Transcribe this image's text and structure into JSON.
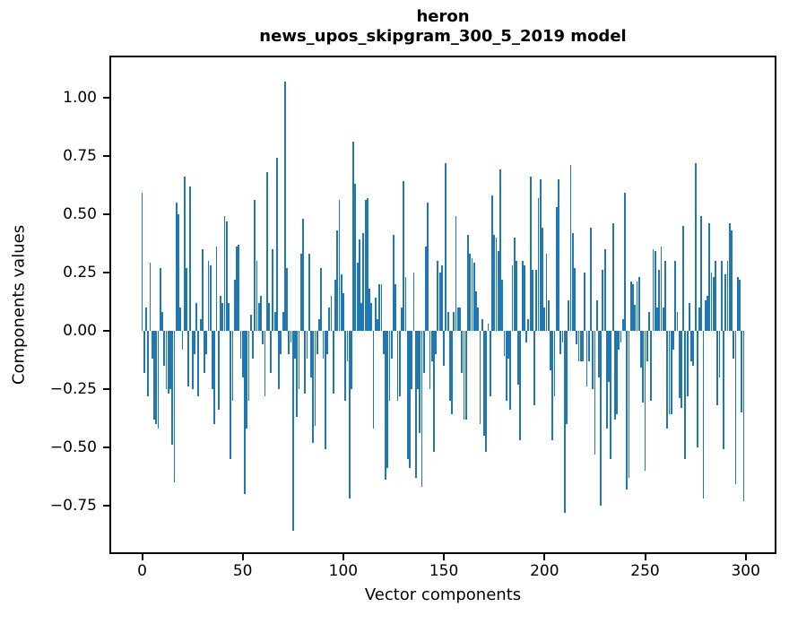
{
  "figure": {
    "title_line1": "heron",
    "title_line2": "news_upos_skipgram_300_5_2019 model"
  },
  "chart_data": {
    "type": "bar",
    "title": "heron\nnews_upos_skipgram_300_5_2019 model",
    "xlabel": "Vector components",
    "ylabel": "Components values",
    "bar_color": "#1f77b4",
    "n_components": 300,
    "xlim": [
      -15.39,
      314.39
    ],
    "ylim": [
      -0.951,
      1.172
    ],
    "grid": false,
    "legend": "none",
    "x_ticks": [
      0,
      50,
      100,
      150,
      200,
      250,
      300
    ],
    "x_tick_labels": [
      "0",
      "50",
      "100",
      "150",
      "200",
      "250",
      "300"
    ],
    "y_ticks": [
      1.0,
      0.75,
      0.5,
      0.25,
      0.0,
      -0.25,
      -0.5,
      -0.75
    ],
    "y_tick_labels": [
      "1.00",
      "0.75",
      "0.50",
      "0.25",
      "0.00",
      "−0.25",
      "−0.50",
      "−0.75"
    ],
    "values": [
      0.59,
      -0.18,
      0.1,
      -0.28,
      0.29,
      -0.12,
      -0.38,
      -0.4,
      -0.42,
      0.27,
      0.08,
      -0.15,
      -0.25,
      -0.27,
      -0.25,
      -0.49,
      -0.65,
      0.55,
      0.5,
      0.1,
      -0.08,
      0.66,
      0.27,
      -0.24,
      0.62,
      -0.25,
      -0.1,
      0.12,
      -0.28,
      0.05,
      0.35,
      -0.18,
      -0.1,
      0.3,
      0.28,
      -0.25,
      -0.4,
      0.36,
      -0.34,
      0.15,
      0.12,
      0.49,
      0.47,
      0.12,
      -0.55,
      -0.3,
      0.22,
      0.36,
      0.37,
      -0.12,
      -0.2,
      -0.7,
      -0.42,
      -0.3,
      0.07,
      -0.12,
      0.56,
      0.3,
      0.12,
      0.15,
      -0.06,
      -0.28,
      0.68,
      0.12,
      -0.18,
      0.35,
      0.08,
      0.74,
      -0.25,
      -0.1,
      0.08,
      1.07,
      0.27,
      -0.1,
      -0.05,
      -0.86,
      -0.12,
      -0.37,
      -0.25,
      0.33,
      0.48,
      -0.27,
      -0.12,
      0.33,
      -0.2,
      -0.48,
      -0.41,
      -0.1,
      0.05,
      0.27,
      -0.12,
      -0.51,
      -0.1,
      0.1,
      0.15,
      -0.27,
      0.22,
      0.43,
      0.56,
      0.24,
      0.16,
      -0.3,
      -0.13,
      -0.72,
      -0.25,
      0.81,
      0.63,
      0.29,
      0.39,
      0.12,
      0.42,
      0.56,
      0.57,
      0.18,
      0.12,
      -0.42,
      0.14,
      0.05,
      0.2,
      0.2,
      -0.1,
      -0.64,
      -0.59,
      -0.3,
      -0.12,
      0.41,
      0.2,
      -0.3,
      -0.28,
      0.1,
      0.64,
      0.23,
      -0.55,
      -0.59,
      -0.25,
      0.25,
      -0.63,
      -0.25,
      -0.44,
      -0.67,
      -0.18,
      0.36,
      0.55,
      -0.25,
      -0.13,
      -0.52,
      -0.1,
      0.3,
      0.25,
      0.28,
      -0.15,
      0.72,
      0.08,
      -0.3,
      -0.36,
      0.08,
      0.49,
      0.1,
      0.1,
      -0.18,
      -0.38,
      -0.38,
      0.41,
      0.33,
      0.31,
      0.29,
      0.17,
      0.1,
      -0.4,
      0.05,
      -0.45,
      -0.52,
      0.03,
      -0.28,
      0.58,
      0.41,
      0.4,
      0.34,
      0.69,
      0.22,
      -0.11,
      -0.3,
      -0.12,
      -0.34,
      0.28,
      0.4,
      0.3,
      -0.23,
      -0.47,
      0.3,
      0.28,
      -0.05,
      0.05,
      0.66,
      0.26,
      -0.32,
      0.26,
      0.57,
      0.65,
      0.44,
      0.1,
      0.33,
      0.13,
      -0.17,
      -0.47,
      -0.28,
      0.53,
      0.65,
      -0.1,
      -0.05,
      -0.78,
      -0.4,
      0.13,
      0.71,
      0.42,
      0.27,
      -0.06,
      -0.13,
      -0.13,
      -0.13,
      0.25,
      -0.24,
      -0.13,
      0.44,
      -0.25,
      -0.53,
      0.13,
      -0.2,
      -0.75,
      0.26,
      0.35,
      -0.42,
      -0.22,
      -0.55,
      0.46,
      -0.38,
      -0.36,
      -0.08,
      -0.05,
      0.05,
      0.59,
      -0.68,
      -0.63,
      0.21,
      0.2,
      0.11,
      0.21,
      0.23,
      -0.16,
      -0.31,
      -0.6,
      -0.13,
      0.08,
      -0.3,
      0.35,
      0.34,
      0.1,
      0.26,
      0.36,
      0.1,
      0.3,
      -0.42,
      -0.36,
      -0.36,
      -0.08,
      0.3,
      0.08,
      -0.29,
      -0.33,
      0.45,
      -0.55,
      -0.28,
      0.12,
      -0.13,
      -0.15,
      0.72,
      -0.5,
      0.1,
      0.49,
      -0.72,
      0.13,
      0.15,
      0.46,
      0.25,
      0.23,
      0.3,
      -0.32,
      -0.2,
      0.3,
      -0.51,
      0.24,
      0.3,
      0.46,
      0.43,
      -0.12,
      -0.66,
      0.23,
      0.22,
      -0.35,
      -0.73
    ]
  }
}
